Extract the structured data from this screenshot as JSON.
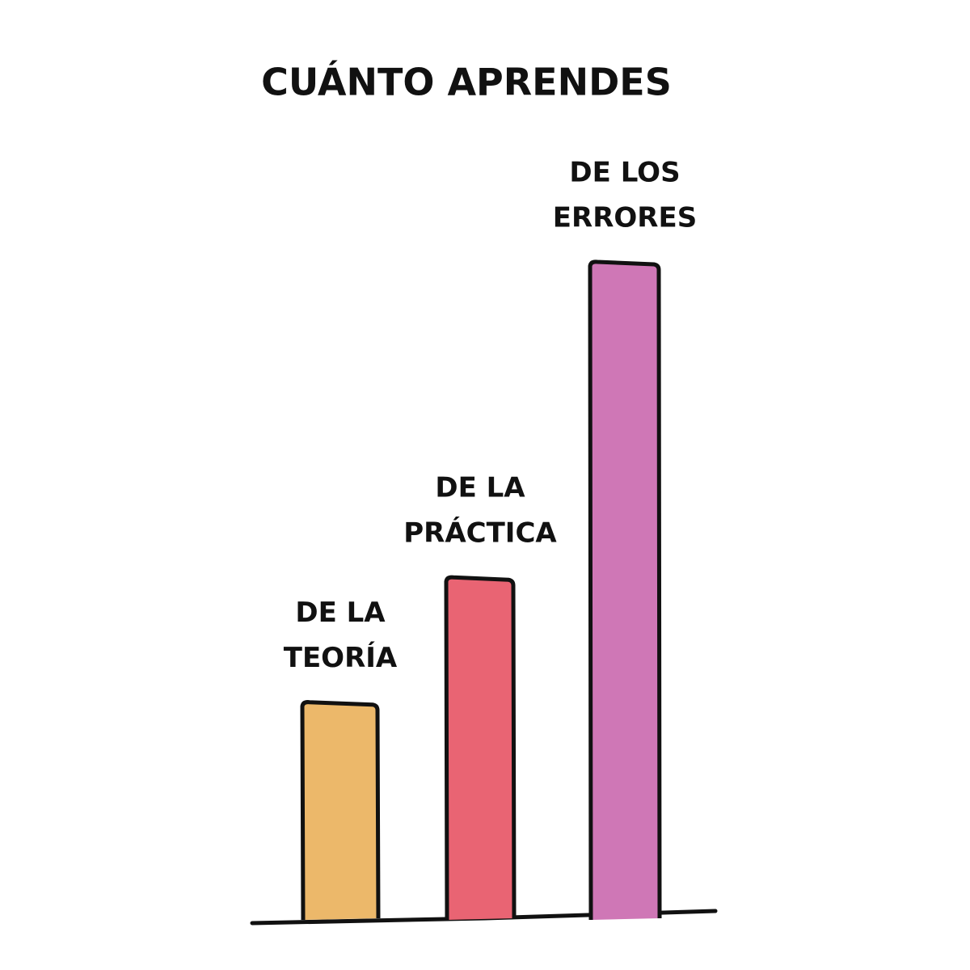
{
  "chart_data": {
    "type": "bar",
    "title": "CUÁNTO APRENDES",
    "categories": [
      [
        "DE LA",
        "TEORÍA"
      ],
      [
        "DE LA",
        "PRÁCTICA"
      ],
      [
        "DE LOS",
        "ERRORES"
      ]
    ],
    "values": [
      33,
      52,
      100
    ],
    "colors": [
      "#ecb86a",
      "#e96473",
      "#cf77b6"
    ]
  }
}
